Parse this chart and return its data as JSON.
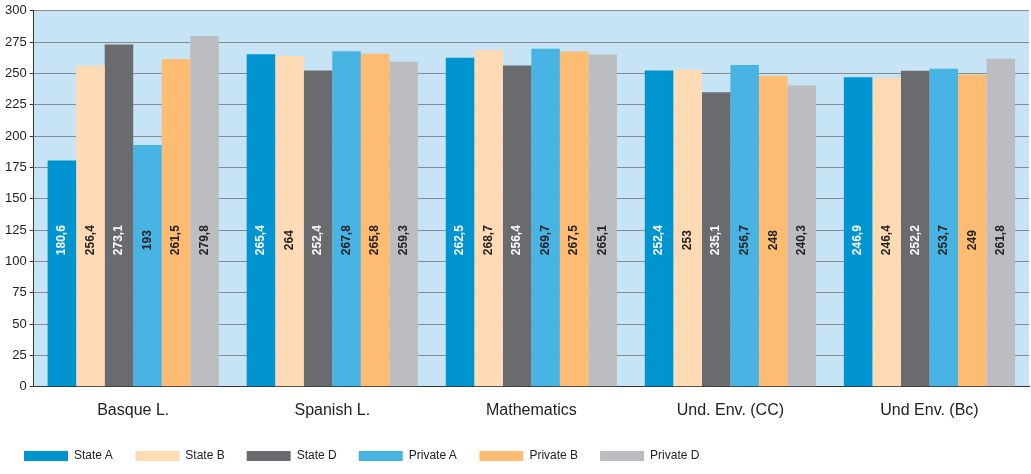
{
  "chart_data": {
    "type": "bar",
    "categories": [
      "Basque L.",
      "Spanish L.",
      "Mathematics",
      "Und. Env. (CC)",
      "Und Env. (Bc)"
    ],
    "series": [
      {
        "name": "State A",
        "color": "#0094d0",
        "values": [
          180.6,
          265.4,
          262.5,
          252.4,
          246.9
        ],
        "value_labels": [
          "180,6",
          "265,4",
          "262,5",
          "252,4",
          "246,9"
        ]
      },
      {
        "name": "State B",
        "color": "#fedbb4",
        "values": [
          256.4,
          264,
          268.7,
          253,
          246.4
        ],
        "value_labels": [
          "256,4",
          "264",
          "268,7",
          "253",
          "246,4"
        ]
      },
      {
        "name": "State D",
        "color": "#6a6b6f",
        "values": [
          273.1,
          252.4,
          256.4,
          235.1,
          252.2
        ],
        "value_labels": [
          "273,1",
          "252,4",
          "256,4",
          "235,1",
          "252,2"
        ]
      },
      {
        "name": "Private A",
        "color": "#48b4e4",
        "values": [
          193,
          267.8,
          269.7,
          256.7,
          253.7
        ],
        "value_labels": [
          "193",
          "267,8",
          "269,7",
          "256,7",
          "253,7"
        ]
      },
      {
        "name": "Private B",
        "color": "#fdbc72",
        "values": [
          261.5,
          265.8,
          267.5,
          248,
          249
        ],
        "value_labels": [
          "261,5",
          "265,8",
          "267,5",
          "248",
          "249"
        ]
      },
      {
        "name": "Private D",
        "color": "#bcbdc1",
        "values": [
          279.8,
          259.3,
          265.1,
          240.3,
          261.8
        ],
        "value_labels": [
          "279,8",
          "259,3",
          "265,1",
          "240,3",
          "261,8"
        ]
      }
    ],
    "ylim": [
      0,
      300
    ],
    "yticks": [
      0,
      25,
      50,
      75,
      100,
      125,
      150,
      175,
      200,
      225,
      250,
      275,
      300
    ],
    "grid": "y",
    "legend": "bottom"
  }
}
